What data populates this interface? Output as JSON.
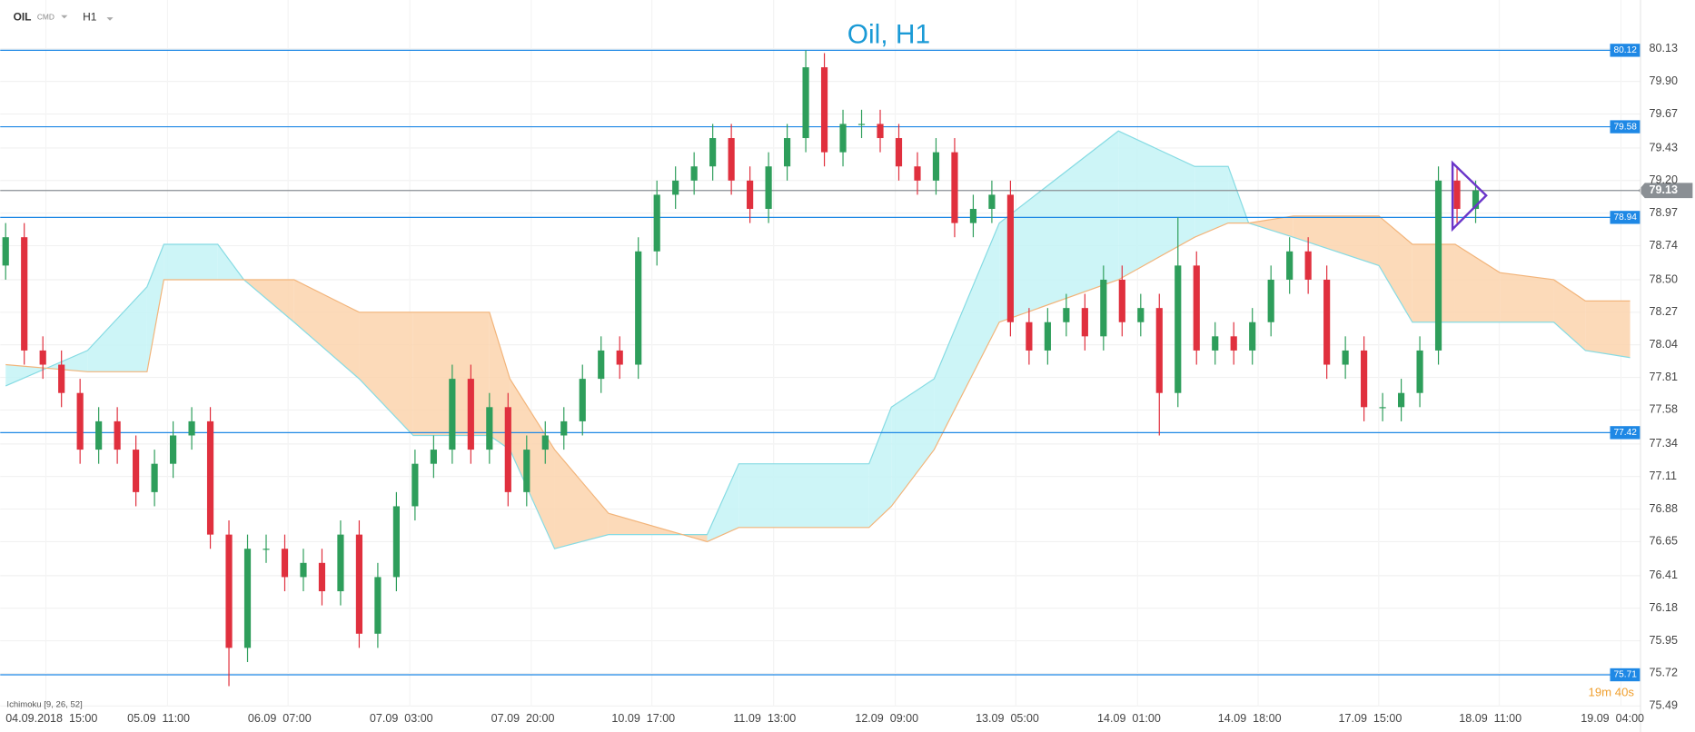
{
  "header": {
    "symbol": "OIL",
    "market": "CMD",
    "interval": "H1"
  },
  "chart_data": {
    "type": "candlestick",
    "title": "Oil, H1",
    "open": [
      78.6,
      78.8,
      78.0,
      77.9,
      77.7,
      77.3,
      77.5,
      77.3,
      77.0,
      77.2,
      77.4,
      77.5,
      76.7,
      75.9,
      76.6,
      76.6,
      76.4,
      76.5,
      76.3,
      76.7,
      76.0,
      76.4,
      76.9,
      77.2,
      77.3,
      77.8,
      77.3,
      77.6,
      77.0,
      77.3,
      77.4,
      77.5,
      77.8,
      78.0,
      77.9,
      78.7,
      79.1,
      79.2,
      79.3,
      79.5,
      79.2,
      79.0,
      79.3,
      79.5,
      80.0,
      79.4,
      79.6,
      79.6,
      79.5,
      79.3,
      79.2,
      79.4,
      78.9,
      79.0,
      79.1,
      78.2,
      78.0,
      78.2,
      78.3,
      78.1,
      78.5,
      78.2,
      78.3,
      77.7,
      78.6,
      78.0,
      78.1,
      78.0,
      78.2,
      78.5,
      78.7,
      78.5,
      77.9,
      78.0,
      77.6,
      77.6,
      77.7,
      78.0,
      79.2,
      79.0
    ],
    "high": [
      78.9,
      78.9,
      78.1,
      78.0,
      77.8,
      77.6,
      77.6,
      77.4,
      77.3,
      77.5,
      77.6,
      77.6,
      76.8,
      76.7,
      76.7,
      76.7,
      76.6,
      76.6,
      76.8,
      76.8,
      76.5,
      77.0,
      77.3,
      77.4,
      77.9,
      77.9,
      77.7,
      77.7,
      77.4,
      77.5,
      77.6,
      77.9,
      78.1,
      78.1,
      78.8,
      79.2,
      79.3,
      79.4,
      79.6,
      79.6,
      79.3,
      79.4,
      79.6,
      80.12,
      80.1,
      79.7,
      79.7,
      79.7,
      79.6,
      79.4,
      79.5,
      79.5,
      79.1,
      79.2,
      79.2,
      78.3,
      78.3,
      78.4,
      78.4,
      78.6,
      78.6,
      78.4,
      78.4,
      78.94,
      78.7,
      78.2,
      78.2,
      78.3,
      78.6,
      78.8,
      78.8,
      78.6,
      78.1,
      78.1,
      77.7,
      77.8,
      78.1,
      79.3,
      79.3,
      79.2
    ],
    "low": [
      78.5,
      77.9,
      77.8,
      77.6,
      77.2,
      77.2,
      77.2,
      76.9,
      76.9,
      77.1,
      77.3,
      76.6,
      75.63,
      75.8,
      76.5,
      76.3,
      76.3,
      76.2,
      76.2,
      75.9,
      75.9,
      76.3,
      76.8,
      77.1,
      77.2,
      77.2,
      77.2,
      76.9,
      76.9,
      77.2,
      77.3,
      77.4,
      77.7,
      77.8,
      77.8,
      78.6,
      79.0,
      79.1,
      79.2,
      79.1,
      78.9,
      78.9,
      79.2,
      79.4,
      79.3,
      79.3,
      79.5,
      79.4,
      79.2,
      79.1,
      79.1,
      78.8,
      78.8,
      78.9,
      78.1,
      77.9,
      77.9,
      78.1,
      78.0,
      78.0,
      78.1,
      78.1,
      77.4,
      77.6,
      77.9,
      77.9,
      77.9,
      77.9,
      78.1,
      78.4,
      78.4,
      77.8,
      77.8,
      77.5,
      77.5,
      77.5,
      77.6,
      77.9,
      78.9,
      78.9
    ],
    "close": [
      78.8,
      78.0,
      77.9,
      77.7,
      77.3,
      77.5,
      77.3,
      77.0,
      77.2,
      77.4,
      77.5,
      76.7,
      75.9,
      76.6,
      76.6,
      76.4,
      76.5,
      76.3,
      76.7,
      76.0,
      76.4,
      76.9,
      77.2,
      77.3,
      77.8,
      77.3,
      77.6,
      77.0,
      77.3,
      77.4,
      77.5,
      77.8,
      78.0,
      77.9,
      78.7,
      79.1,
      79.2,
      79.3,
      79.5,
      79.2,
      79.0,
      79.3,
      79.5,
      80.0,
      79.4,
      79.6,
      79.6,
      79.5,
      79.3,
      79.2,
      79.4,
      78.9,
      79.0,
      79.1,
      78.2,
      78.0,
      78.2,
      78.3,
      78.1,
      78.5,
      78.2,
      78.3,
      77.7,
      78.6,
      78.0,
      78.1,
      78.0,
      78.2,
      78.5,
      78.7,
      78.5,
      77.9,
      78.0,
      77.6,
      77.6,
      77.7,
      78.0,
      79.2,
      79.0,
      79.13
    ],
    "up_color": "#2e9e5b",
    "down_color": "#e0303e",
    "cloud": {
      "x": [
        0,
        4.4,
        7.6,
        8.5,
        11.4,
        12.8,
        15.5,
        19,
        21.9,
        26,
        27.1,
        29.5,
        32.4,
        37.7,
        39.4,
        46.4,
        47.6,
        49.9,
        53.4,
        59.8,
        63.9,
        65.7,
        66.8,
        69.2,
        73.8,
        75.6,
        77.9,
        80.3,
        83.2,
        84.9,
        87.3
      ],
      "span_a": [
        77.75,
        78.0,
        78.45,
        78.75,
        78.75,
        78.5,
        78.2,
        77.8,
        77.4,
        77.4,
        77.3,
        76.6,
        76.7,
        76.7,
        77.2,
        77.2,
        77.6,
        77.8,
        78.9,
        79.55,
        79.3,
        79.3,
        78.9,
        78.8,
        78.6,
        78.2,
        78.2,
        78.2,
        78.2,
        78.0,
        77.95
      ],
      "span_b": [
        77.9,
        77.85,
        77.85,
        78.5,
        78.5,
        78.5,
        78.5,
        78.27,
        78.27,
        78.27,
        77.8,
        77.3,
        76.85,
        76.65,
        76.75,
        76.75,
        76.9,
        77.3,
        78.2,
        78.5,
        78.8,
        78.9,
        78.9,
        78.95,
        78.95,
        78.75,
        78.75,
        78.55,
        78.5,
        78.35,
        78.35
      ],
      "bull_color": "#c4f3f6",
      "bear_color": "#fbd3ad",
      "a_color": "#86dbe3",
      "b_color": "#f2b47a"
    },
    "levels": [
      {
        "value": 80.12,
        "color": "#1e88e5"
      },
      {
        "value": 79.58,
        "color": "#1e88e5"
      },
      {
        "value": 78.94,
        "color": "#1e88e5"
      },
      {
        "value": 77.42,
        "color": "#1e88e5"
      },
      {
        "value": 75.71,
        "color": "#1e88e5"
      }
    ],
    "last_price": 79.13,
    "last_color": "#8a8f94",
    "ylim": [
      75.49,
      80.13
    ],
    "yticks": [
      75.49,
      75.72,
      75.95,
      76.18,
      76.41,
      76.65,
      76.88,
      77.11,
      77.34,
      77.58,
      77.81,
      78.04,
      78.27,
      {
        "value": 78.5,
        "label": "78.50"
      },
      78.74,
      78.97,
      {
        "value": 79.2,
        "label": "79.20"
      },
      79.43,
      79.67,
      {
        "value": 79.9,
        "label": "79.90"
      },
      80.13
    ],
    "xticks": [
      {
        "value": 0,
        "label": "04.09.2018  15:00"
      },
      {
        "value": 6.54,
        "label": "05.09  11:00"
      },
      {
        "value": 13.02,
        "label": "06.09  07:00"
      },
      {
        "value": 19.56,
        "label": "07.09  03:00"
      },
      {
        "value": 26.09,
        "label": "07.09  20:00"
      },
      {
        "value": 32.57,
        "label": "10.09  17:00"
      },
      {
        "value": 39.11,
        "label": "11.09  13:00"
      },
      {
        "value": 45.65,
        "label": "12.09  09:00"
      },
      {
        "value": 52.13,
        "label": "13.09  05:00"
      },
      {
        "value": 58.67,
        "label": "14.09  01:00"
      },
      {
        "value": 65.15,
        "label": "14.09  18:00"
      },
      {
        "value": 71.63,
        "label": "17.09  15:00"
      },
      {
        "value": 78.11,
        "label": "18.09  11:00"
      },
      {
        "value": 84.65,
        "label": "19.09  04:00"
      }
    ],
    "grid": true,
    "indicator": "Ichimoku  [9, 26, 52]",
    "timer": "19m 40s"
  }
}
